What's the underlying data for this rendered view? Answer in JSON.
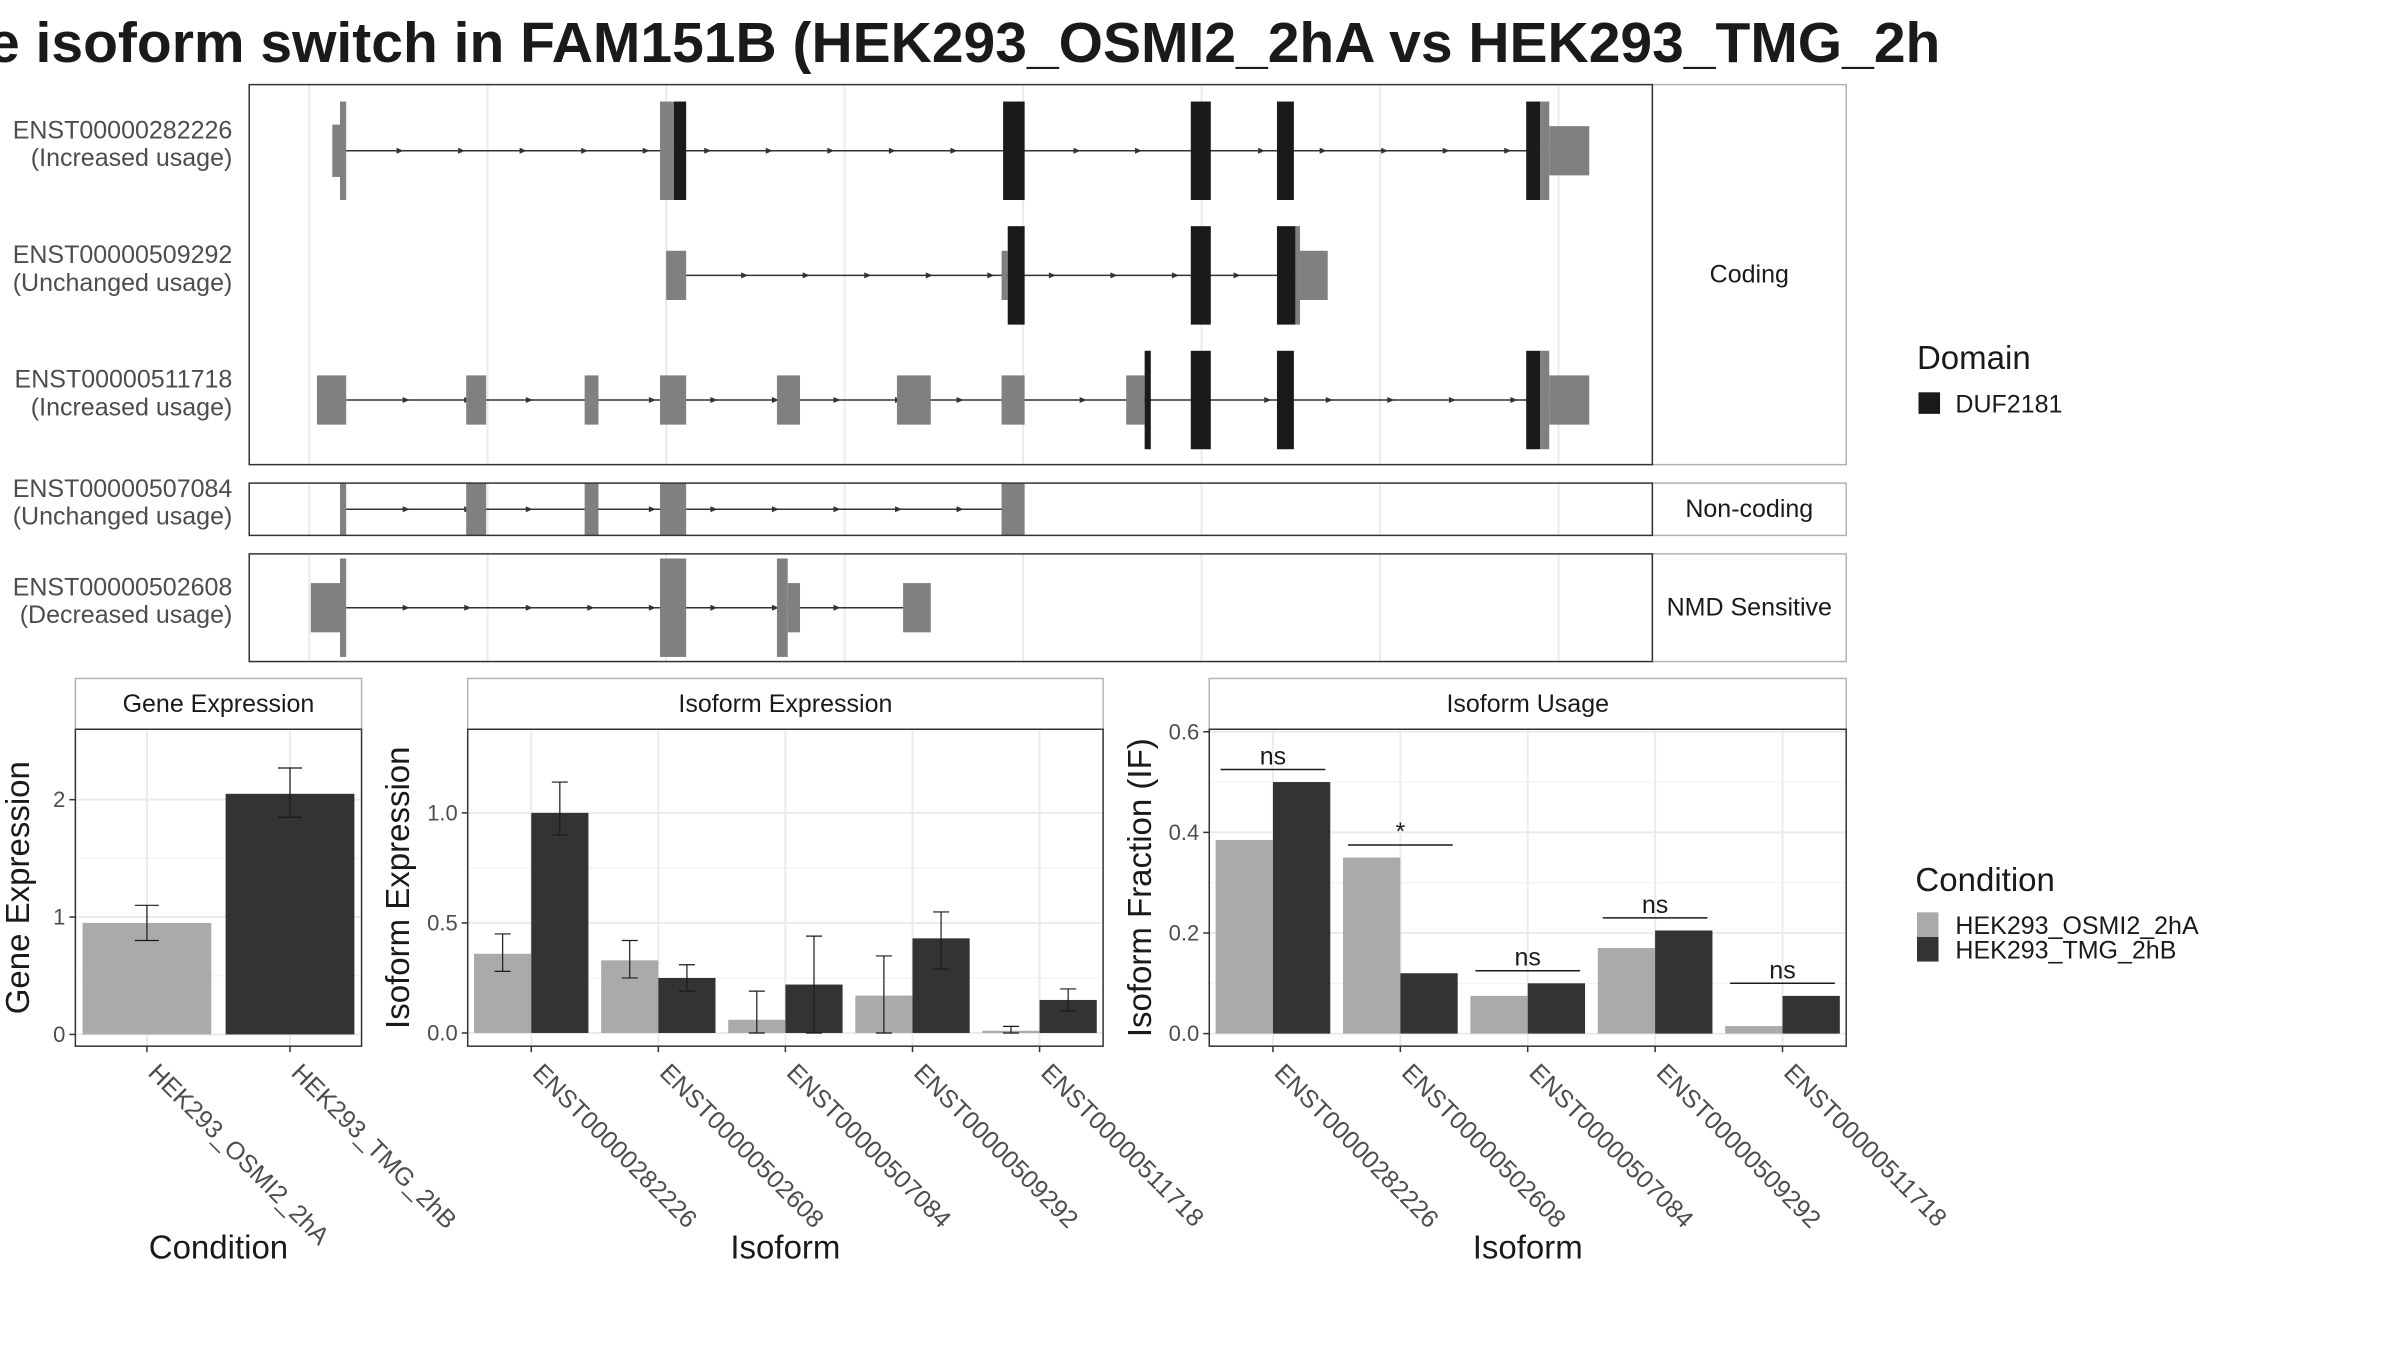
{
  "title": "e isoform switch in FAM151B (HEK293_OSMI2_2hA vs HEK293_TMG_2h",
  "colors": {
    "domain": "#1a1a1a",
    "exon": "#808080",
    "cond_a": "#aaaaaa",
    "cond_b": "#333333"
  },
  "structure": {
    "facets": [
      "Coding",
      "Non-coding",
      "NMD Sensitive"
    ],
    "transcripts": [
      {
        "id": "ENST00000282226",
        "usage": "(Increased usage)",
        "facet": "Coding"
      },
      {
        "id": "ENST00000509292",
        "usage": "(Unchanged usage)",
        "facet": "Coding"
      },
      {
        "id": "ENST00000511718",
        "usage": "(Increased usage)",
        "facet": "Coding"
      },
      {
        "id": "ENST00000507084",
        "usage": "(Unchanged usage)",
        "facet": "Non-coding"
      },
      {
        "id": "ENST00000502608",
        "usage": "(Decreased usage)",
        "facet": "NMD Sensitive"
      }
    ]
  },
  "legend_domain": {
    "title": "Domain",
    "items": [
      {
        "label": "DUF2181",
        "color": "#1a1a1a"
      }
    ]
  },
  "legend_condition": {
    "title": "Condition",
    "items": [
      {
        "label": "HEK293_OSMI2_2hA",
        "color": "#aaaaaa"
      },
      {
        "label": "HEK293_TMG_2hB",
        "color": "#333333"
      }
    ]
  },
  "chart_data": [
    {
      "type": "bar",
      "title": "Gene Expression",
      "xlabel": "Condition",
      "ylabel": "Gene Expression",
      "categories": [
        "HEK293_OSMI2_2hA",
        "HEK293_TMG_2hB"
      ],
      "values": [
        0.95,
        2.05
      ],
      "errors": [
        [
          0.8,
          1.1
        ],
        [
          1.85,
          2.27
        ]
      ],
      "ylim": [
        -0.1,
        2.6
      ],
      "yticks": [
        "0",
        "1",
        "2"
      ],
      "grid": true
    },
    {
      "type": "bar",
      "title": "Isoform Expression",
      "xlabel": "Isoform",
      "ylabel": "Isoform Expression",
      "categories": [
        "ENST00000282226",
        "ENST00000502608",
        "ENST00000507084",
        "ENST00000509292",
        "ENST00000511718"
      ],
      "series": [
        {
          "name": "HEK293_OSMI2_2hA",
          "values": [
            0.36,
            0.33,
            0.06,
            0.17,
            0.01
          ],
          "errors": [
            [
              0.28,
              0.45
            ],
            [
              0.25,
              0.42
            ],
            [
              0.0,
              0.19
            ],
            [
              0.0,
              0.35
            ],
            [
              0.0,
              0.03
            ]
          ]
        },
        {
          "name": "HEK293_TMG_2hB",
          "values": [
            1.0,
            0.25,
            0.22,
            0.43,
            0.15
          ],
          "errors": [
            [
              0.9,
              1.14
            ],
            [
              0.19,
              0.31
            ],
            [
              0.0,
              0.44
            ],
            [
              0.29,
              0.55
            ],
            [
              0.1,
              0.2
            ]
          ]
        }
      ],
      "ylim": [
        -0.06,
        1.38
      ],
      "yticks": [
        "0.0",
        "0.5",
        "1.0"
      ],
      "grid": true
    },
    {
      "type": "bar",
      "title": "Isoform Usage",
      "xlabel": "Isoform",
      "ylabel": "Isoform Fraction (IF)",
      "categories": [
        "ENST00000282226",
        "ENST00000502608",
        "ENST00000507084",
        "ENST00000509292",
        "ENST00000511718"
      ],
      "series": [
        {
          "name": "HEK293_OSMI2_2hA",
          "values": [
            0.385,
            0.35,
            0.075,
            0.17,
            0.015
          ]
        },
        {
          "name": "HEK293_TMG_2hB",
          "values": [
            0.5,
            0.12,
            0.1,
            0.205,
            0.075
          ]
        }
      ],
      "significance": [
        "ns",
        "*",
        "ns",
        "ns",
        "ns"
      ],
      "ylim": [
        -0.025,
        0.605
      ],
      "yticks": [
        "0.0",
        "0.2",
        "0.4",
        "0.6"
      ],
      "grid": true
    }
  ]
}
